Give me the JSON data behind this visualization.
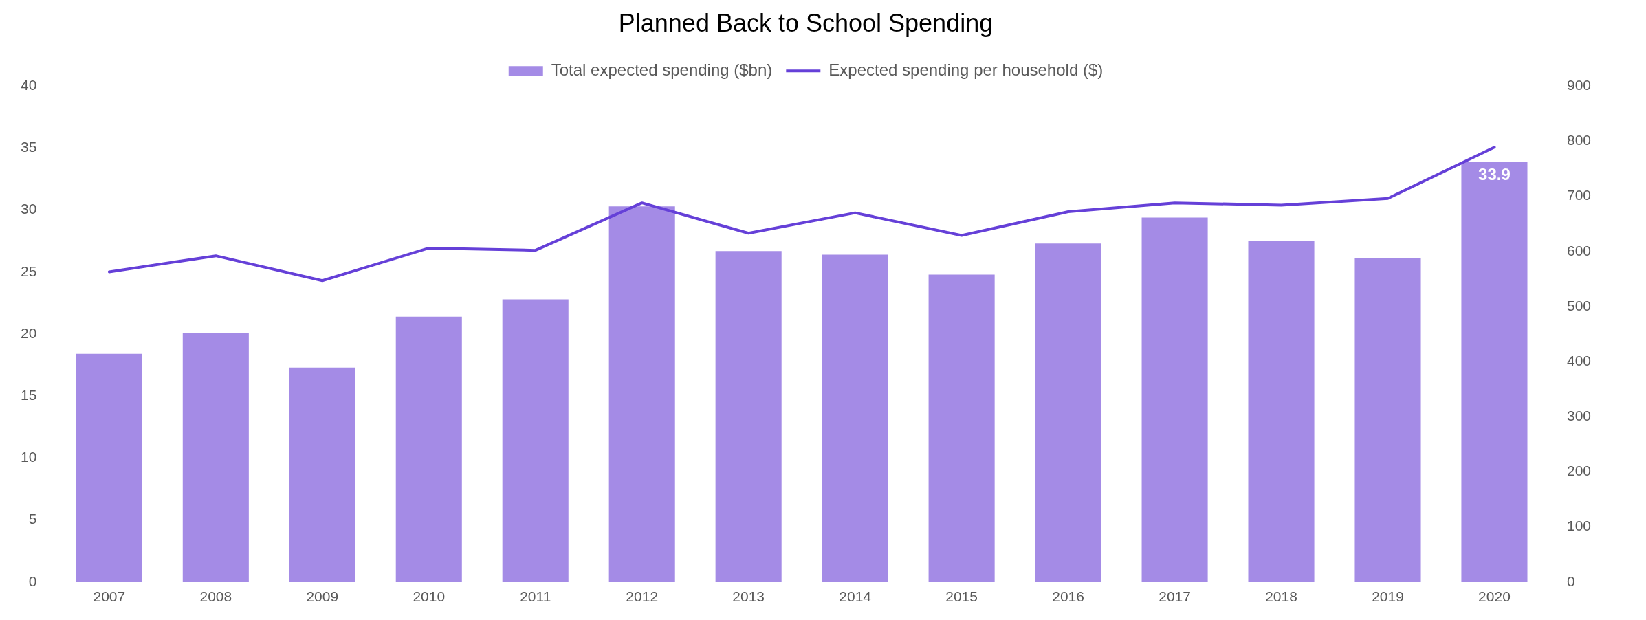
{
  "chart_data": {
    "type": "bar",
    "title": "Planned Back to School Spending",
    "categories": [
      "2007",
      "2008",
      "2009",
      "2010",
      "2011",
      "2012",
      "2013",
      "2014",
      "2015",
      "2016",
      "2017",
      "2018",
      "2019",
      "2020"
    ],
    "series": [
      {
        "name": "Total expected spending ($bn)",
        "color": "#a48be6",
        "values": [
          18.4,
          20.1,
          17.3,
          21.4,
          22.8,
          30.3,
          26.7,
          26.4,
          24.8,
          27.3,
          29.4,
          27.5,
          26.1,
          33.9
        ],
        "value_labels": [
          null,
          null,
          null,
          null,
          null,
          null,
          null,
          null,
          null,
          null,
          null,
          null,
          null,
          "33.9"
        ]
      },
      {
        "name": "Expected spending per household ($)",
        "type": "line",
        "axis": "y2",
        "color": "#6540d8",
        "values": [
          563,
          592,
          547,
          606,
          602,
          688,
          633,
          670,
          629,
          672,
          688,
          684,
          696,
          789
        ]
      }
    ],
    "ylim": [
      0,
      40
    ],
    "yticks": [
      0,
      5,
      10,
      15,
      20,
      25,
      30,
      35,
      40
    ],
    "y2lim": [
      0,
      900
    ],
    "y2ticks": [
      0,
      100,
      200,
      300,
      400,
      500,
      600,
      700,
      800,
      900
    ],
    "grid": false,
    "legend": "top",
    "marker": "none",
    "line_style": "solid"
  }
}
